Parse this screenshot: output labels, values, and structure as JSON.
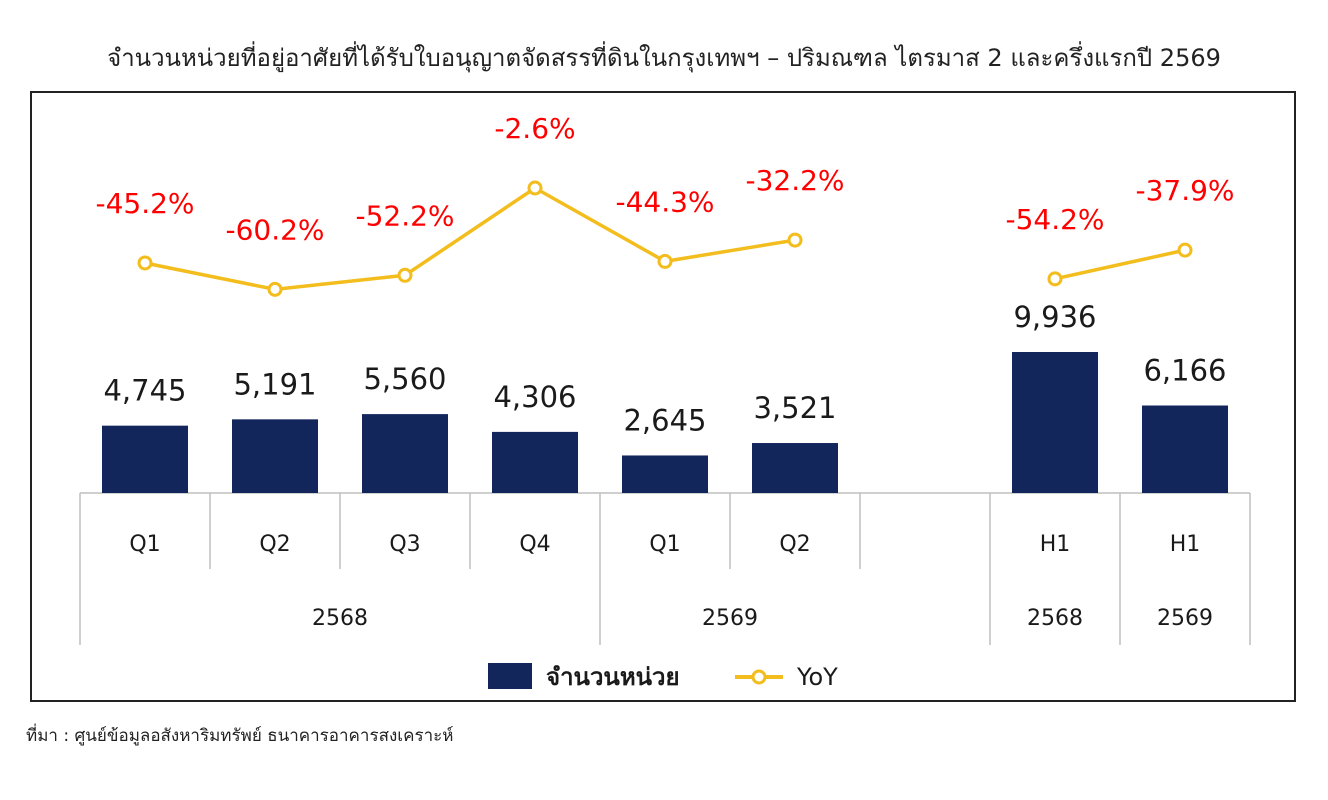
{
  "title": "จำนวนหน่วยที่อยู่อาศัยที่ได้รับใบอนุญาตจัดสรรที่ดินในกรุงเทพฯ – ปริมณฑล ไตรมาส 2 และครึ่งแรกปี 2569",
  "source": "ที่มา : ศูนย์ข้อมูลอสังหาริมทรัพย์ ธนาคารอาคารสงเคราะห์",
  "colors": {
    "bar": "#13265c",
    "line": "#f2bd1d",
    "yoy_label": "#ff0000"
  },
  "chart_data": {
    "type": "bar",
    "categories": [
      "Q1",
      "Q2",
      "Q3",
      "Q4",
      "Q1",
      "Q2",
      "",
      "H1",
      "H1"
    ],
    "groups": [
      {
        "label": "2568",
        "span": 4
      },
      {
        "label": "2569",
        "span": 3
      },
      {
        "label": "2568",
        "span": 1
      },
      {
        "label": "2569",
        "span": 1
      }
    ],
    "series": [
      {
        "name": "จำนวนหน่วย",
        "type": "bar",
        "values": [
          4745,
          5191,
          5560,
          4306,
          2645,
          3521,
          null,
          9936,
          6166
        ],
        "labels": [
          "4,745",
          "5,191",
          "5,560",
          "4,306",
          "2,645",
          "3,521",
          "",
          "9,936",
          "6,166"
        ]
      },
      {
        "name": "YoY",
        "type": "line",
        "values": [
          -45.2,
          -60.2,
          -52.2,
          -2.6,
          -44.3,
          -32.2,
          null,
          -54.2,
          -37.9
        ],
        "labels": [
          "-45.2%",
          "-60.2%",
          "-52.2%",
          "-2.6%",
          "-44.3%",
          "-32.2%",
          "",
          "-54.2%",
          "-37.9%"
        ]
      }
    ],
    "bar_ylim": [
      0,
      11000
    ],
    "line_ylim": [
      -100,
      0
    ],
    "legend_position": "bottom-center",
    "grid": false
  }
}
